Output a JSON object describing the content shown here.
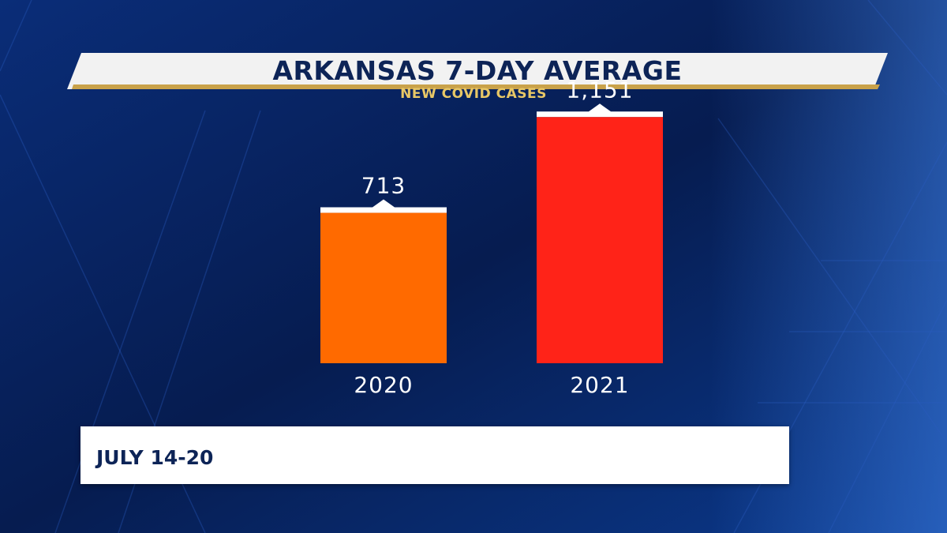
{
  "header": {
    "title": "ARKANSAS 7-DAY AVERAGE",
    "subtitle": "NEW COVID CASES"
  },
  "footer": {
    "date_range": "JULY 14-20"
  },
  "colors": {
    "background": "#08235f",
    "title_bar": "#f2f2f2",
    "title_text": "#0d2457",
    "subtitle_text": "#e8c766",
    "accent_gold": "#c9a24a"
  },
  "chart_data": {
    "type": "bar",
    "categories": [
      "2020",
      "2021"
    ],
    "values": [
      713,
      1151
    ],
    "value_labels": [
      "713",
      "1,151"
    ],
    "colors": [
      "#ff6a00",
      "#ff2318"
    ],
    "title": "ARKANSAS 7-DAY AVERAGE",
    "subtitle": "NEW COVID CASES",
    "xlabel": "",
    "ylabel": "",
    "ylim": [
      0,
      1300
    ],
    "grid": false
  }
}
